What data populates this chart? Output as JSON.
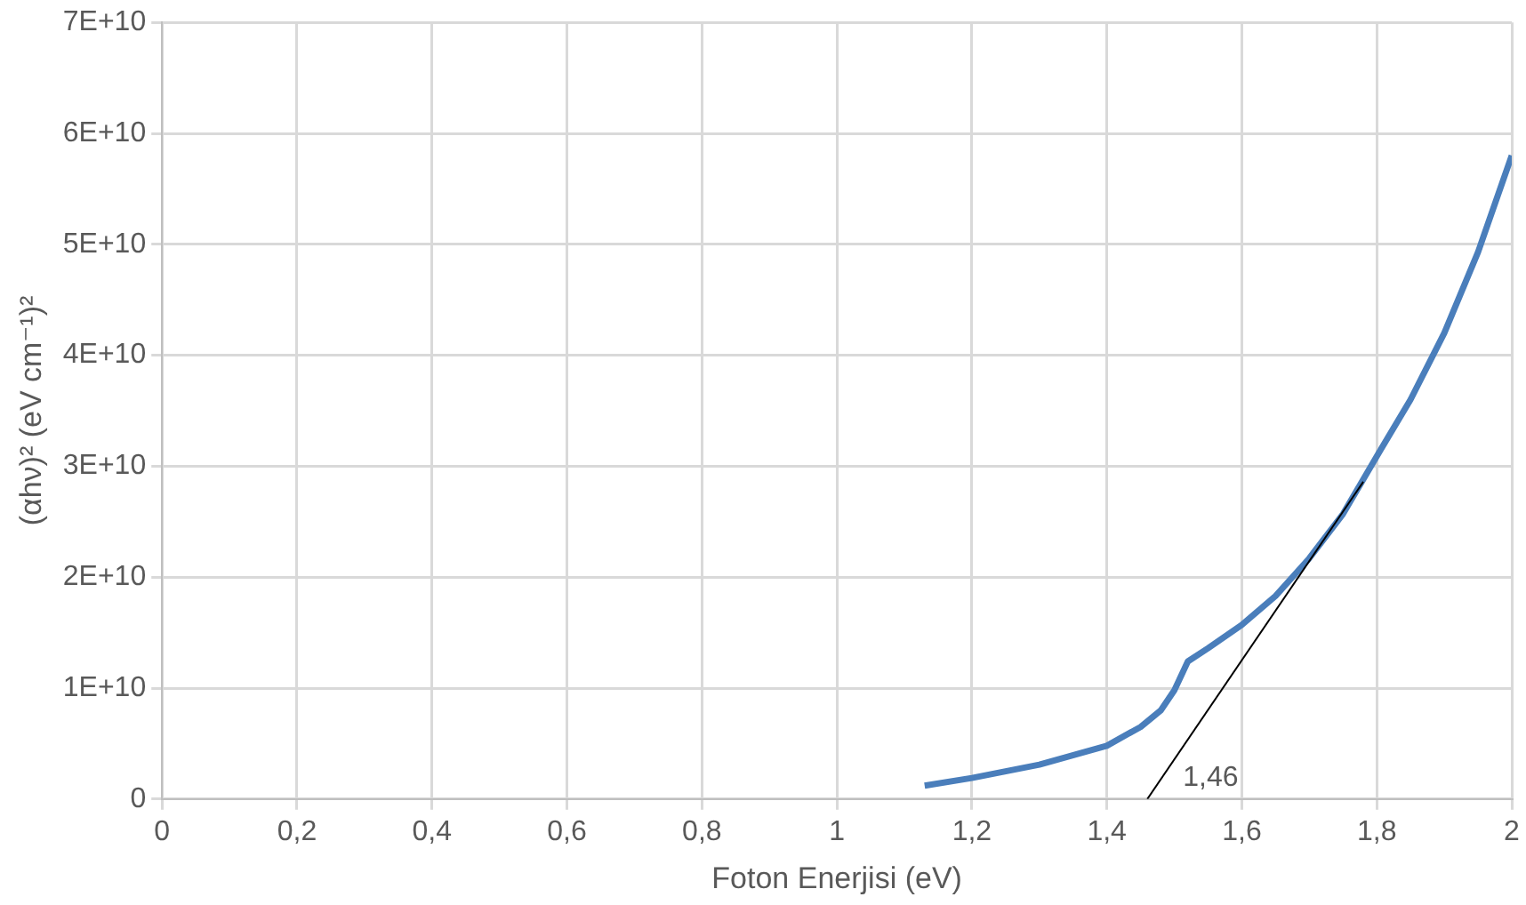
{
  "chart_data": {
    "type": "line",
    "xlabel": "Foton Enerjisi (eV)",
    "ylabel": "(αhν)² (eV cm⁻¹)²",
    "xlim": [
      0,
      2
    ],
    "xticks": [
      0,
      {
        "value": 0.2,
        "label": "0,2"
      },
      {
        "value": 0.4,
        "label": "0,4"
      },
      {
        "value": 0.6,
        "label": "0,6"
      },
      {
        "value": 0.8,
        "label": "0,8"
      },
      1,
      {
        "value": 1.2,
        "label": "1,2"
      },
      {
        "value": 1.4,
        "label": "1,4"
      },
      {
        "value": 1.6,
        "label": "1,6"
      },
      {
        "value": 1.8,
        "label": "1,8"
      },
      2
    ],
    "ylim": [
      0,
      70000000000
    ],
    "yticks": [
      0,
      {
        "value": 10000000000,
        "label": "1E+10"
      },
      {
        "value": 20000000000,
        "label": "2E+10"
      },
      {
        "value": 30000000000,
        "label": "3E+10"
      },
      {
        "value": 40000000000,
        "label": "4E+10"
      },
      {
        "value": 50000000000,
        "label": "5E+10"
      },
      {
        "value": 60000000000,
        "label": "6E+10"
      },
      {
        "value": 70000000000,
        "label": "7E+10"
      }
    ],
    "grid": true,
    "legend": false,
    "marker": "none",
    "series": [
      {
        "color": "#4a7ebb",
        "x": [
          1.13,
          1.2,
          1.3,
          1.4,
          1.45,
          1.48,
          1.5,
          1.52,
          1.55,
          1.6,
          1.65,
          1.7,
          1.75,
          1.8,
          1.85,
          1.9,
          1.95,
          2.0
        ],
        "values": [
          1200000000,
          1900000000,
          3100000000,
          4800000000,
          6500000000,
          8000000000,
          9800000000,
          12400000000,
          13600000000,
          15700000000,
          18300000000,
          21700000000,
          25700000000,
          30900000000,
          36000000000,
          42000000000,
          49300000000,
          58000000000
        ]
      },
      {
        "color": "#000000",
        "x": [
          1.46,
          1.78
        ],
        "values": [
          0,
          28600000000
        ]
      }
    ],
    "annotations": [
      {
        "text": "1,46",
        "x": 1.46,
        "y": 0
      }
    ]
  }
}
